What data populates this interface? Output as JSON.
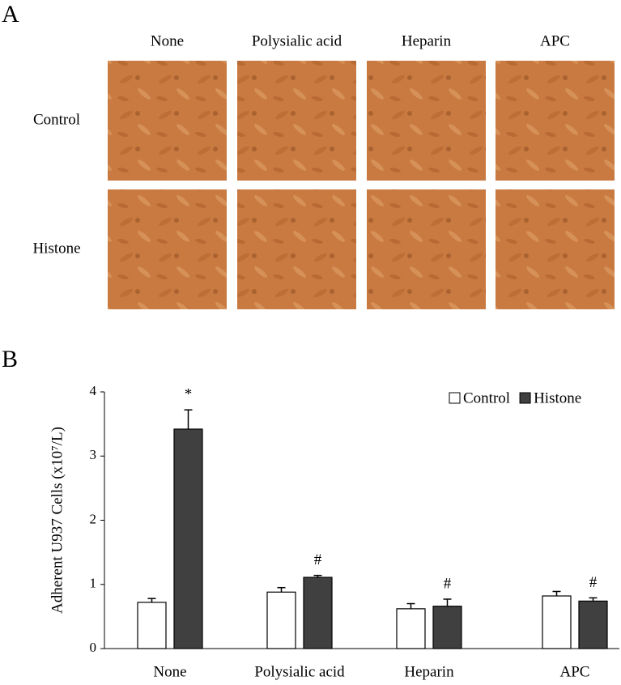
{
  "panel_labels": [
    "A",
    "B"
  ],
  "panel_a": {
    "columns": [
      "None",
      "Polysialic acid",
      "Heparin",
      "APC"
    ],
    "rows": [
      "Control",
      "Histone"
    ]
  },
  "chart_data": {
    "type": "bar",
    "y_label": "Adherent U937 Cells (x10⁷/L)",
    "categories": [
      "None",
      "Polysialic acid",
      "Heparin",
      "APC"
    ],
    "series": [
      {
        "name": "Control",
        "color": "#ffffff",
        "values": [
          0.72,
          0.88,
          0.62,
          0.82
        ],
        "errors": [
          0.06,
          0.07,
          0.08,
          0.07
        ]
      },
      {
        "name": "Histone",
        "color": "#404040",
        "values": [
          3.42,
          1.11,
          0.66,
          0.74
        ],
        "errors": [
          0.3,
          0.03,
          0.11,
          0.05
        ],
        "markers": [
          "*",
          "#",
          "#",
          "#"
        ]
      }
    ],
    "ylim": [
      0,
      4
    ],
    "yticks": [
      0,
      1,
      2,
      3,
      4
    ],
    "legend": "upper right"
  }
}
